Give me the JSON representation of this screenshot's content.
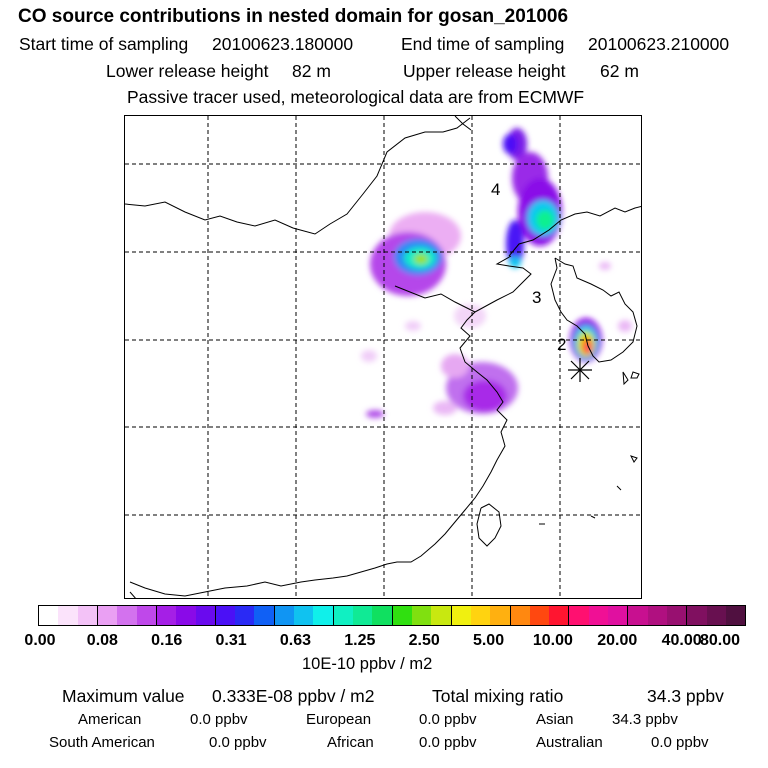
{
  "header": {
    "title": "CO  source contributions in nested domain for gosan_201006",
    "start_label": "Start time of sampling",
    "start_value": "20100623.180000",
    "end_label": "End time of sampling",
    "end_value": "20100623.210000",
    "lower_label": "Lower release height",
    "lower_value": "82 m",
    "upper_label": "Upper release height",
    "upper_value": "62 m",
    "note": "Passive tracer used, meteorological data are from ECMWF"
  },
  "map": {
    "point_labels": [
      "4",
      "3",
      "2"
    ],
    "receptor_marker": "asterisk-icon"
  },
  "colorbar": {
    "colors": [
      "#ffffff",
      "#fbe3fb",
      "#f3c2f7",
      "#eaa0f3",
      "#d372ee",
      "#bf48ea",
      "#a51fe6",
      "#8a0ae8",
      "#6a0aee",
      "#4b10f6",
      "#2a2af5",
      "#1060f5",
      "#1095f3",
      "#10c2f0",
      "#10f0ea",
      "#10f0c2",
      "#10ea95",
      "#10e060",
      "#30e010",
      "#80e010",
      "#c8e810",
      "#f0f010",
      "#ffd310",
      "#ffb010",
      "#ff8810",
      "#ff4810",
      "#ff1530",
      "#ff1070",
      "#f01095",
      "#e010a0",
      "#c81090",
      "#b01080",
      "#981070",
      "#801060",
      "#681050",
      "#501040"
    ],
    "labels": [
      "0.00",
      "0.08",
      "0.16",
      "0.31",
      "0.63",
      "1.25",
      "2.50",
      "5.00",
      "10.00",
      "20.00",
      "40.00",
      "80.00"
    ],
    "units": "10E-10 ppbv / m2"
  },
  "stats": {
    "max_label": "Maximum value",
    "max_value": "0.333E-08 ppbv / m2",
    "total_label": "Total mixing ratio",
    "total_value": "34.3 ppbv",
    "regions": [
      {
        "name": "American",
        "value": "0.0 ppbv"
      },
      {
        "name": "European",
        "value": "0.0 ppbv"
      },
      {
        "name": "Asian",
        "value": "34.3 ppbv"
      },
      {
        "name": "South American",
        "value": "0.0 ppbv"
      },
      {
        "name": "African",
        "value": "0.0 ppbv"
      },
      {
        "name": "Australian",
        "value": "0.0 ppbv"
      }
    ]
  }
}
